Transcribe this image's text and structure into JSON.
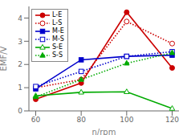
{
  "chart_data": {
    "type": "line",
    "x": [
      60,
      80,
      100,
      120
    ],
    "series": [
      {
        "name": "L-E",
        "values": [
          0.5,
          1.2,
          4.25,
          1.85
        ],
        "color": "#cc0000",
        "line_style": "solid",
        "marker": "circle"
      },
      {
        "name": "L-S",
        "values": [
          1.0,
          1.35,
          3.85,
          2.9
        ],
        "color": "#cc0000",
        "line_style": "dotted",
        "marker": "circle-open"
      },
      {
        "name": "M-E",
        "values": [
          0.95,
          2.2,
          2.35,
          2.4
        ],
        "color": "#0000cc",
        "line_style": "solid",
        "marker": "square"
      },
      {
        "name": "M-S",
        "values": [
          1.05,
          1.7,
          2.35,
          2.55
        ],
        "color": "#0000cc",
        "line_style": "dotted",
        "marker": "square-open"
      },
      {
        "name": "S-E",
        "values": [
          0.65,
          0.8,
          0.82,
          0.1
        ],
        "color": "#00aa00",
        "line_style": "solid",
        "marker": "triangle-open"
      },
      {
        "name": "S-S",
        "values": [
          0.6,
          1.35,
          2.05,
          2.5
        ],
        "color": "#00aa00",
        "line_style": "dotted",
        "marker": "triangle"
      }
    ],
    "xlabel": "n/rpm",
    "ylabel": "EMF/V",
    "xlim": [
      57,
      123
    ],
    "ylim": [
      0,
      4.5
    ],
    "xticks": [
      60,
      80,
      100,
      120
    ],
    "yticks": [
      0,
      1,
      2,
      3,
      4
    ],
    "grid": false,
    "legend": "upper left"
  }
}
